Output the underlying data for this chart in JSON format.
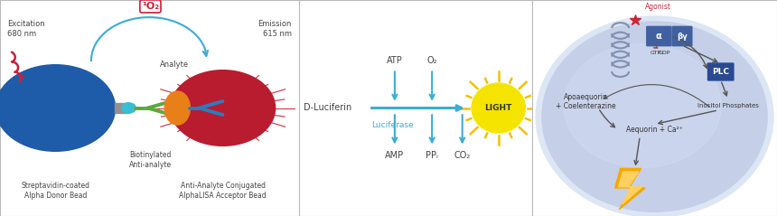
{
  "fig_width": 8.6,
  "fig_height": 2.39,
  "dpi": 100,
  "bg_color": "#ffffff",
  "border_color": "#bbbbbb",
  "panel1": {
    "donor_bead_color": "#1e5ba8",
    "acceptor_bead_color": "#b81c2e",
    "analyte_color": "#e8801a",
    "antibody_green": "#5aaa3c",
    "antibody_blue": "#2e7bbf",
    "arrow_color": "#3badd4",
    "excitation_color": "#cc1f36",
    "o2_color": "#cc1f36",
    "ray_color": "#cc2233",
    "text_color": "#444444",
    "excitation_text": "Excitation\n680 nm",
    "emission_text": "Emission\n615 nm",
    "analyte_label": "Analyte",
    "o2_label": "¹O₂",
    "donor_label": "Streptavidin-coated\nAlpha Donor Bead",
    "acceptor_label": "Anti-Analyte Conjugated\nAlphaLISA Acceptor Bead",
    "biotin_label": "Biotinylated\nAnti-analyte"
  },
  "panel2": {
    "reaction_color": "#3badd4",
    "text_color": "#444444",
    "dluciferin_label": "D-Luciferin",
    "luciferase_label": "Luciferase",
    "atp_label": "ATP",
    "o2_label": "O₂",
    "amp_label": "AMP",
    "ppi_label": "PPᵢ",
    "co2_label": "CO₂",
    "light_color": "#f5e400",
    "light_label": "LIGHT",
    "sun_ray_color": "#f5c000"
  },
  "panel3": {
    "cell_outer_color": "#c5cfe8",
    "cell_inner_color": "#a8b8d8",
    "cell_gradient_color": "#d8e0f0",
    "receptor_color": "#8090b0",
    "box_color": "#4060a0",
    "plc_color": "#2a4a90",
    "agonist_color": "#cc2233",
    "arrow_color": "#555555",
    "text_color": "#333333",
    "agonist_label": "Agonist",
    "apoaequorin_label": "Apoaequorin\n+ Coelenterazine",
    "aequorin_label": "Aequorin + Ca²⁺",
    "inositol_label": "Inositol Phosphates",
    "plc_label": "PLC",
    "gtp_label": "GTP",
    "gdp_label": "GDP",
    "lightning_color": "#f5a800",
    "lightning_inner": "#ffd060"
  }
}
